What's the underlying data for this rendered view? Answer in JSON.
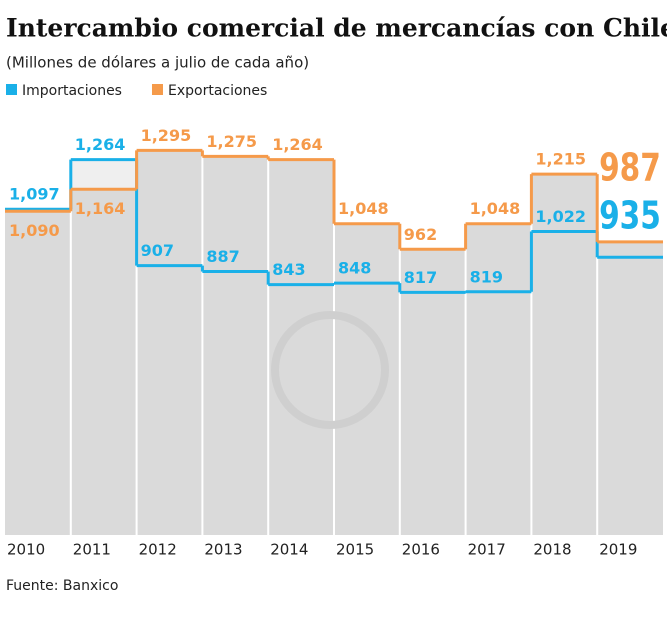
{
  "chart_data": {
    "type": "step",
    "title": "Intercambio comercial de mercancías con Chile",
    "subtitle": "(Millones de dólares a julio de cada año)",
    "source": "Fuente: Banxico",
    "categories": [
      "2010",
      "2011",
      "2012",
      "2013",
      "2014",
      "2015",
      "2016",
      "2017",
      "2018",
      "2019"
    ],
    "series": [
      {
        "name": "Importaciones",
        "color": "#1ab0e8",
        "values": [
          1097,
          1264,
          907,
          887,
          843,
          848,
          817,
          819,
          1022,
          935
        ],
        "value_labels": [
          "1,097",
          "1,264",
          "907",
          "887",
          "843",
          "848",
          "817",
          "819",
          "1,022",
          "935"
        ]
      },
      {
        "name": "Exportaciones",
        "color": "#f59a4a",
        "values": [
          1090,
          1164,
          1295,
          1275,
          1264,
          1048,
          962,
          1048,
          1215,
          987
        ],
        "value_labels": [
          "1,090",
          "1,164",
          "1,295",
          "1,275",
          "1,264",
          "1,048",
          "962",
          "1,048",
          "1,215",
          "987"
        ]
      }
    ]
  }
}
